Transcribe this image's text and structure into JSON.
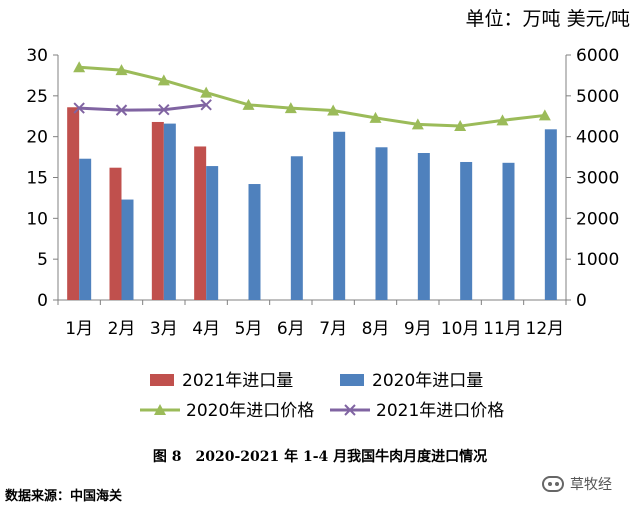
{
  "unit_label": "单位：万吨 美元/吨",
  "caption": "图 8　2020-2021 年 1-4 月我国牛肉月度进口情况",
  "source": "数据来源：中国海关",
  "watermark": "草牧经",
  "colors": {
    "s2021_volume": "#C0504D",
    "s2020_volume": "#4F81BD",
    "s2020_price": "#9BBB59",
    "s2021_price": "#8064A2",
    "axis": "#808080"
  },
  "chart_data": {
    "type": "bar",
    "categories": [
      "1月",
      "2月",
      "3月",
      "4月",
      "5月",
      "6月",
      "7月",
      "8月",
      "9月",
      "10月",
      "11月",
      "12月"
    ],
    "left_axis": {
      "ylim": [
        0,
        30
      ],
      "ticks": [
        0,
        5,
        10,
        15,
        20,
        25,
        30
      ]
    },
    "right_axis": {
      "ylim": [
        0,
        6000
      ],
      "ticks": [
        0,
        1000,
        2000,
        3000,
        4000,
        5000,
        6000
      ]
    },
    "grid": false,
    "legend_position": "bottom",
    "series": [
      {
        "name": "2021年进口量",
        "type": "bar",
        "axis": "left",
        "color": "#C0504D",
        "values": [
          23.6,
          16.2,
          21.8,
          18.8,
          null,
          null,
          null,
          null,
          null,
          null,
          null,
          null
        ]
      },
      {
        "name": "2020年进口量",
        "type": "bar",
        "axis": "left",
        "color": "#4F81BD",
        "values": [
          17.3,
          12.3,
          21.6,
          16.4,
          14.2,
          17.6,
          20.6,
          18.7,
          18.0,
          16.9,
          16.8,
          20.9
        ]
      },
      {
        "name": "2020年进口价格",
        "type": "line",
        "axis": "right",
        "color": "#9BBB59",
        "marker": "triangle",
        "values": [
          5700,
          5630,
          5380,
          5080,
          4780,
          4700,
          4640,
          4460,
          4300,
          4260,
          4400,
          4520
        ]
      },
      {
        "name": "2021年进口价格",
        "type": "line",
        "axis": "right",
        "color": "#8064A2",
        "marker": "x",
        "values": [
          4700,
          4650,
          4660,
          4780,
          null,
          null,
          null,
          null,
          null,
          null,
          null,
          null
        ]
      }
    ]
  }
}
